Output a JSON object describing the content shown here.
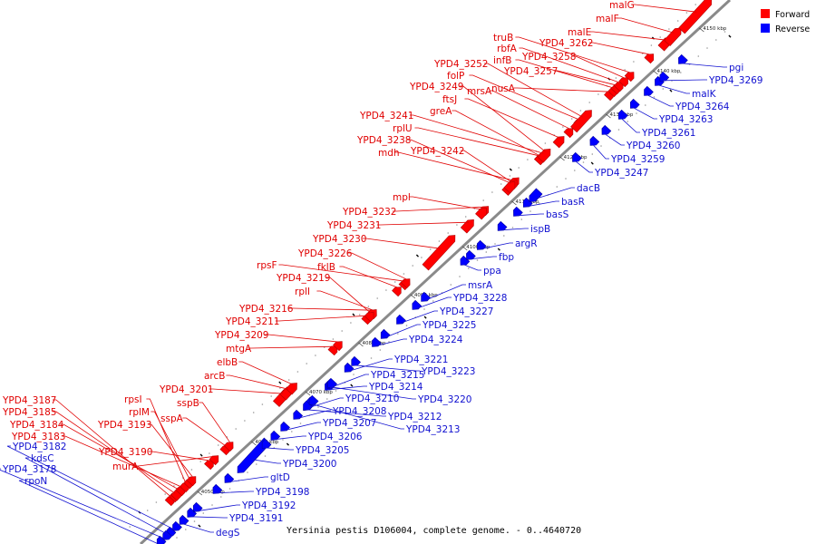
{
  "caption": "Yersinia pestis D106004, complete genome. - 0..4640720",
  "legend": [
    {
      "label": "Forward",
      "color": "#ff0000"
    },
    {
      "label": "Reverse",
      "color": "#0000ff"
    }
  ],
  "colors": {
    "forward": "#ff0000",
    "forward_stroke": "#b00000",
    "reverse": "#0000ff",
    "reverse_stroke": "#0000a0",
    "backbone": "#8a8a8a"
  },
  "ticks": [
    "4050 kbp",
    "4060 kbp",
    "4070 kbp",
    "4080 kbp",
    "4090 kbp",
    "4100 kbp",
    "4110 kbp",
    "4120 kbp",
    "4130 kbp",
    "4140 kbp",
    "4150 kbp"
  ],
  "forward_genes": [
    "YPD4_3187",
    "YPD4_3185",
    "YPD4_3184",
    "YPD4_3183",
    "rpsI",
    "rplM",
    "YPD4_3193",
    "sspA",
    "YPD4_3190",
    "murA",
    "sspB",
    "YPD4_3201",
    "arcB",
    "elbB",
    "mtgA",
    "YPD4_3209",
    "YPD4_3211",
    "YPD4_3216",
    "rplI",
    "YPD4_3219",
    "rpsF",
    "fklB",
    "YPD4_3226",
    "YPD4_3230",
    "YPD4_3231",
    "YPD4_3232",
    "mpl",
    "YPD4_3242",
    "mdh",
    "YPD4_3238",
    "rplU",
    "YPD4_3241",
    "greA",
    "YPD4_3249",
    "ftsJ",
    "mrsA",
    "folP",
    "YPD4_3252",
    "nusA",
    "infB",
    "YPD4_3257",
    "rbfA",
    "YPD4_3258",
    "truB",
    "YPD4_3262",
    "malE",
    "malF",
    "malG"
  ],
  "reverse_genes": [
    "YPD4_3182",
    "kdsC",
    "YPD4_3178",
    "rpoN",
    "degS",
    "YPD4_3191",
    "YPD4_3192",
    "YPD4_3198",
    "gltD",
    "YPD4_3200",
    "YPD4_3205",
    "YPD4_3206",
    "YPD4_3207",
    "YPD4_3208",
    "YPD4_3210",
    "YPD4_3212",
    "YPD4_3213",
    "YPD4_3214",
    "YPD4_3215",
    "YPD4_3220",
    "YPD4_3221",
    "YPD4_3223",
    "YPD4_3224",
    "YPD4_3225",
    "YPD4_3227",
    "YPD4_3228",
    "msrA",
    "ppa",
    "fbp",
    "argR",
    "ispB",
    "basS",
    "basR",
    "dacB",
    "YPD4_3247",
    "YPD4_3259",
    "YPD4_3260",
    "YPD4_3261",
    "YPD4_3263",
    "YPD4_3264",
    "malK",
    "YPD4_3269",
    "pgi"
  ]
}
